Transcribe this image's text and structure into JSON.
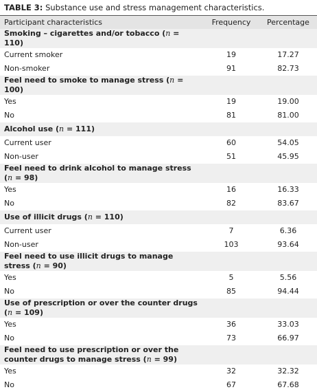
{
  "caption": {
    "label": "TABLE 3:",
    "text": "Substance use and stress management characteristics."
  },
  "table": {
    "header": [
      "Participant characteristics",
      "Frequency",
      "Percentage"
    ],
    "sections": [
      {
        "title": [
          "Smoking – cigarettes and/or tobacco (",
          "n",
          " = 110)"
        ],
        "rows": [
          [
            "Current smoker",
            "19",
            "17.27"
          ],
          [
            "Non-smoker",
            "91",
            "82.73"
          ]
        ]
      },
      {
        "title": [
          "Feel need to smoke to manage stress (",
          "n",
          " = 100)"
        ],
        "rows": [
          [
            "Yes",
            "19",
            "19.00"
          ],
          [
            "No",
            "81",
            "81.00"
          ]
        ]
      },
      {
        "title": [
          "Alcohol use (",
          "n",
          " = 111)"
        ],
        "rows": [
          [
            "Current user",
            "60",
            "54.05"
          ],
          [
            "Non-user",
            "51",
            "45.95"
          ]
        ]
      },
      {
        "title": [
          "Feel need to drink alcohol to manage stress (",
          "n",
          " = 98)"
        ],
        "rows": [
          [
            "Yes",
            "16",
            "16.33"
          ],
          [
            "No",
            "82",
            "83.67"
          ]
        ]
      },
      {
        "title": [
          "Use of illicit drugs (",
          "n",
          " = 110)"
        ],
        "rows": [
          [
            "Current user",
            "7",
            "6.36"
          ],
          [
            "Non-user",
            "103",
            "93.64"
          ]
        ]
      },
      {
        "title": [
          "Feel need to use illicit drugs to manage stress (",
          "n",
          " = 90)"
        ],
        "rows": [
          [
            "Yes",
            "5",
            "5.56"
          ],
          [
            "No",
            "85",
            "94.44"
          ]
        ]
      },
      {
        "title": [
          "Use of prescription or over the counter drugs (",
          "n",
          " = 109)"
        ],
        "rows": [
          [
            "Yes",
            "36",
            "33.03"
          ],
          [
            "No",
            "73",
            "66.97"
          ]
        ]
      },
      {
        "title": [
          "Feel need to use prescription or over the counter drugs to manage stress (",
          "n",
          " = 99)"
        ],
        "rows": [
          [
            "Yes",
            "32",
            "32.32"
          ],
          [
            "No",
            "67",
            "67.68"
          ]
        ]
      }
    ]
  }
}
